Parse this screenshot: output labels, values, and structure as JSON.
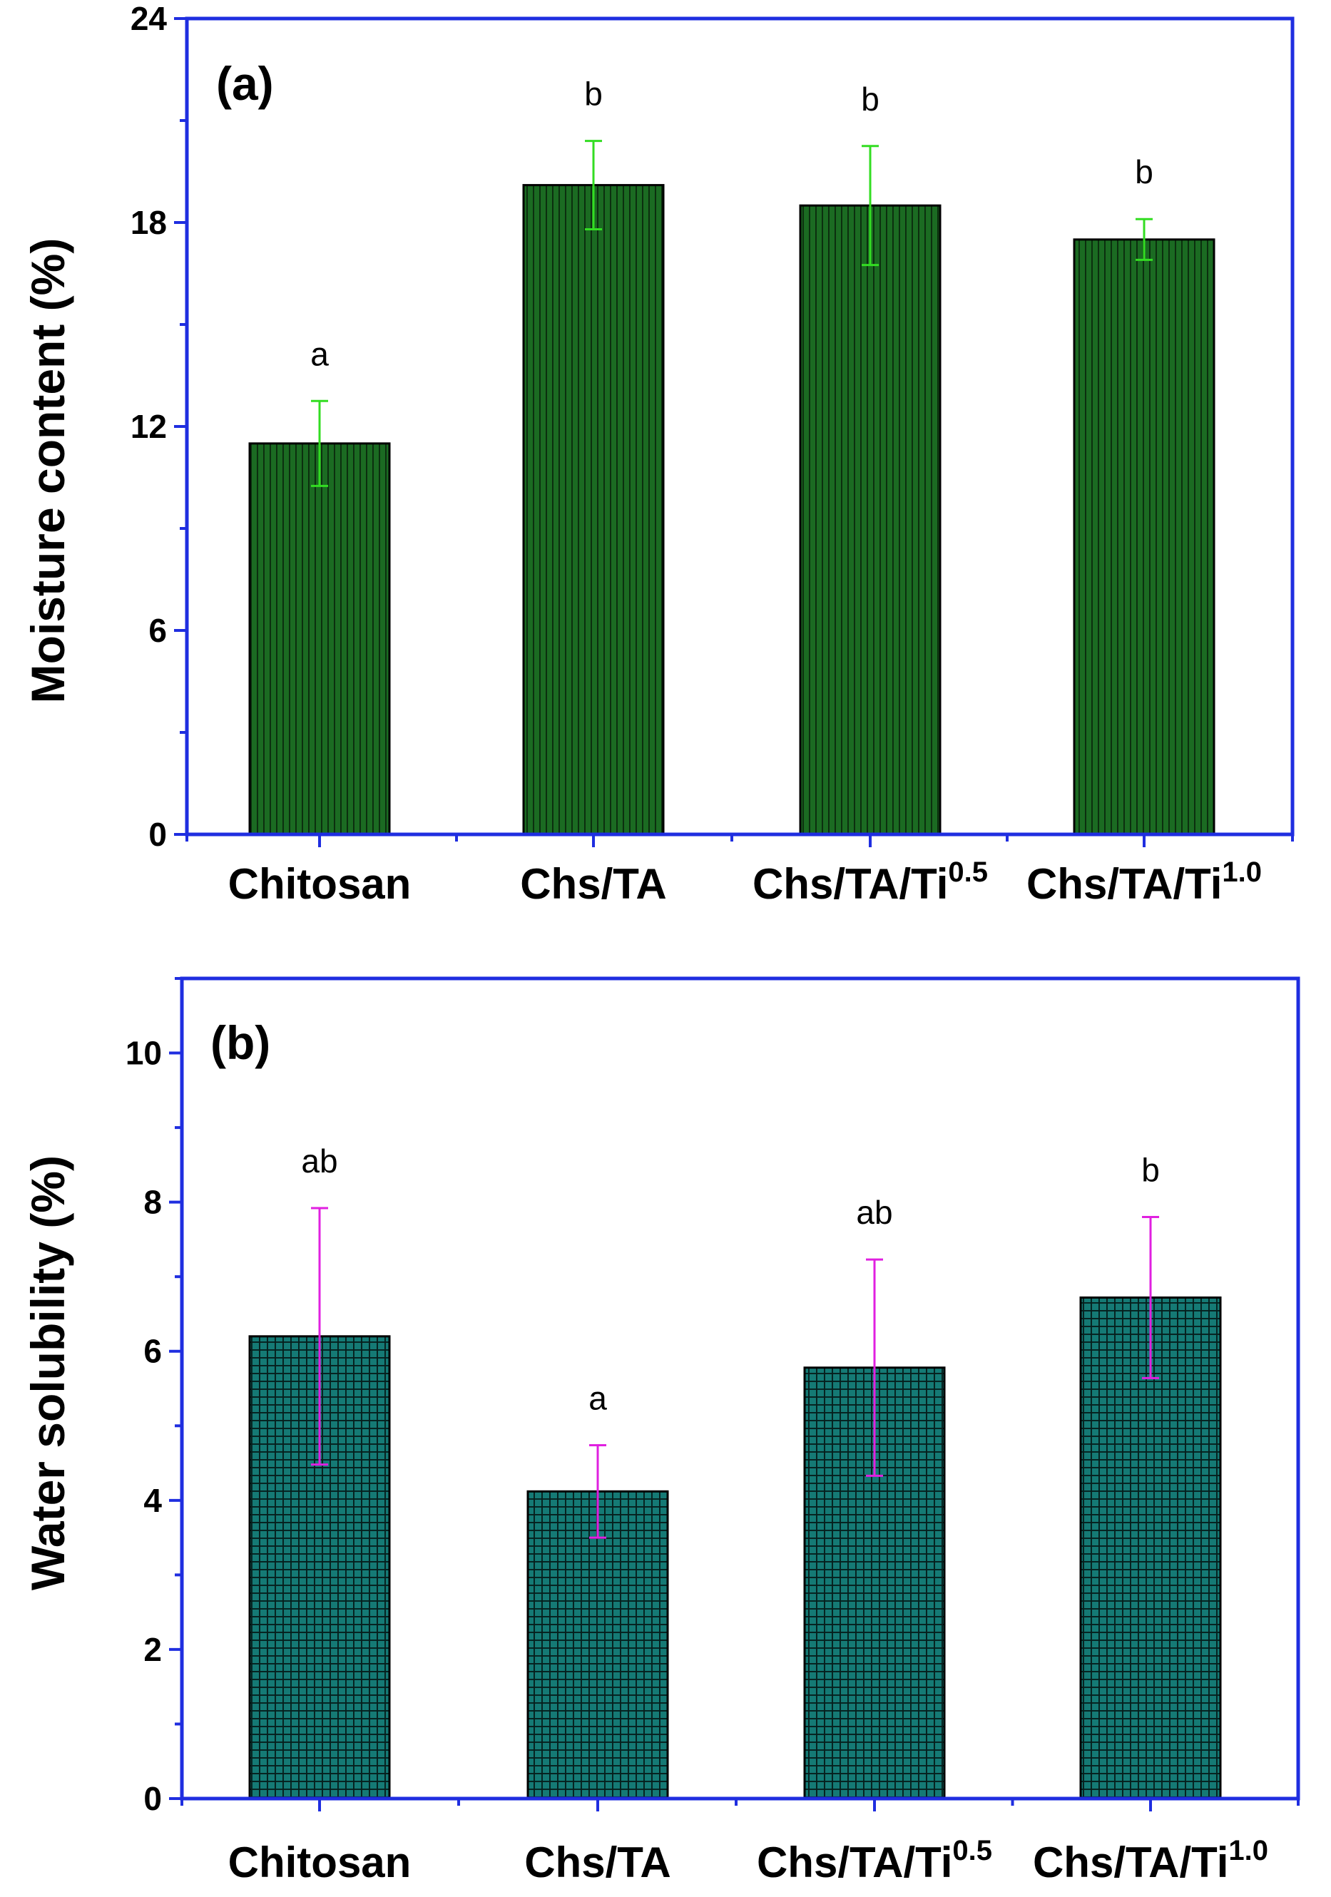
{
  "chart_data": [
    {
      "type": "bar",
      "panel_label": "(a)",
      "ylabel": "Moisture content (%)",
      "xlabel": "",
      "categories": [
        "Chitosan",
        "Chs/TA",
        "Chs/TA/Ti",
        "Chs/TA/Ti"
      ],
      "category_superscripts": [
        "",
        "",
        "0.5",
        "1.0"
      ],
      "values": [
        11.5,
        19.1,
        18.5,
        17.5
      ],
      "errors": [
        1.25,
        1.3,
        1.75,
        0.6
      ],
      "significance": [
        "a",
        "b",
        "b",
        "b"
      ],
      "ylim": [
        0,
        24
      ],
      "yticks": [
        0,
        6,
        12,
        18,
        24
      ],
      "ytick_labels": [
        "0",
        "6",
        "12",
        "18",
        "24"
      ],
      "bar_pattern": "vertical-lines",
      "bar_color": "#1b6b22",
      "pattern_color": "#0b2c0e",
      "error_color": "#33dd22",
      "axis_color": "#1f2ee0",
      "grid": false
    },
    {
      "type": "bar",
      "panel_label": "(b)",
      "ylabel": "Water solubility (%)",
      "xlabel": "",
      "categories": [
        "Chitosan",
        "Chs/TA",
        "Chs/TA/Ti",
        "Chs/TA/Ti"
      ],
      "category_superscripts": [
        "",
        "",
        "0.5",
        "1.0"
      ],
      "values": [
        6.2,
        4.12,
        5.78,
        6.72
      ],
      "errors": [
        1.72,
        0.62,
        1.45,
        1.08
      ],
      "significance": [
        "ab",
        "a",
        "ab",
        "b"
      ],
      "ylim": [
        0,
        11
      ],
      "yticks": [
        0,
        2,
        4,
        6,
        8,
        10
      ],
      "ytick_labels": [
        "0",
        "2",
        "4",
        "6",
        "8",
        "10"
      ],
      "bar_pattern": "grid",
      "bar_color": "#157a75",
      "pattern_color": "#061f1d",
      "error_color": "#e020e0",
      "axis_color": "#1f2ee0",
      "grid": false
    }
  ]
}
